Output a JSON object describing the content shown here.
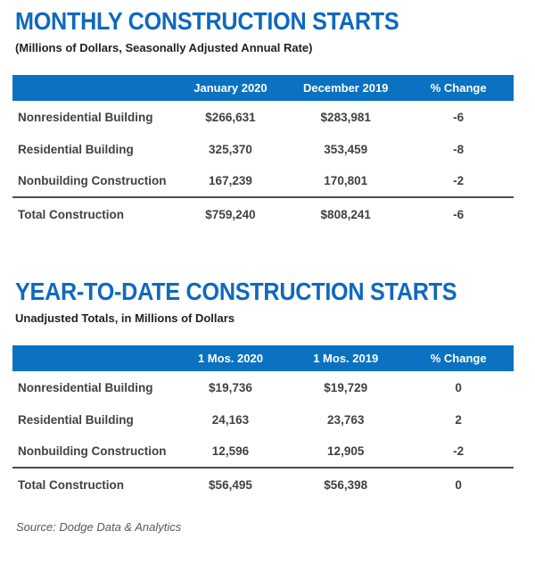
{
  "colors": {
    "title_blue": "#0E69BE",
    "header_bar_blue": "#0A72C0",
    "rule_gray": "#4D4D4F",
    "text_dark": "#414145",
    "subtitle_black": "#231F20",
    "source_gray": "#58595B"
  },
  "sections": [
    {
      "title": "MONTHLY CONSTRUCTION STARTS",
      "subtitle": "(Millions of Dollars, Seasonally Adjusted Annual Rate)",
      "columns": [
        "",
        "January 2020",
        "December 2019",
        "% Change"
      ],
      "rows": [
        [
          "Nonresidential Building",
          "$266,631",
          "$283,981",
          "-6"
        ],
        [
          "Residential Building",
          "325,370",
          "353,459",
          "-8"
        ],
        [
          "Nonbuilding Construction",
          "167,239",
          "170,801",
          "-2"
        ]
      ],
      "total_row": [
        "Total Construction",
        "$759,240",
        "$808,241",
        "-6"
      ]
    },
    {
      "title": "YEAR-TO-DATE CONSTRUCTION STARTS",
      "subtitle": "Unadjusted Totals, in Millions of Dollars",
      "columns": [
        "",
        "1 Mos. 2020",
        "1 Mos. 2019",
        "% Change"
      ],
      "rows": [
        [
          "Nonresidential Building",
          "$19,736",
          "$19,729",
          "0"
        ],
        [
          "Residential Building",
          "24,163",
          "23,763",
          "2"
        ],
        [
          "Nonbuilding Construction",
          "12,596",
          "12,905",
          "-2"
        ]
      ],
      "total_row": [
        "Total Construction",
        "$56,495",
        "$56,398",
        "0"
      ]
    }
  ],
  "source": "Source: Dodge Data & Analytics",
  "chart_data": [
    {
      "type": "table",
      "title": "MONTHLY CONSTRUCTION STARTS",
      "subtitle": "(Millions of Dollars, Seasonally Adjusted Annual Rate)",
      "columns": [
        "January 2020",
        "December 2019",
        "% Change"
      ],
      "rows": [
        {
          "label": "Nonresidential Building",
          "values": [
            266631,
            283981,
            -6
          ]
        },
        {
          "label": "Residential Building",
          "values": [
            325370,
            353459,
            -8
          ]
        },
        {
          "label": "Nonbuilding Construction",
          "values": [
            167239,
            170801,
            -2
          ]
        },
        {
          "label": "Total Construction",
          "values": [
            759240,
            808241,
            -6
          ]
        }
      ]
    },
    {
      "type": "table",
      "title": "YEAR-TO-DATE CONSTRUCTION STARTS",
      "subtitle": "Unadjusted Totals, in Millions of Dollars",
      "columns": [
        "1 Mos. 2020",
        "1 Mos. 2019",
        "% Change"
      ],
      "rows": [
        {
          "label": "Nonresidential Building",
          "values": [
            19736,
            19729,
            0
          ]
        },
        {
          "label": "Residential Building",
          "values": [
            24163,
            23763,
            2
          ]
        },
        {
          "label": "Nonbuilding Construction",
          "values": [
            12596,
            12905,
            -2
          ]
        },
        {
          "label": "Total Construction",
          "values": [
            56495,
            56398,
            0
          ]
        }
      ]
    }
  ]
}
